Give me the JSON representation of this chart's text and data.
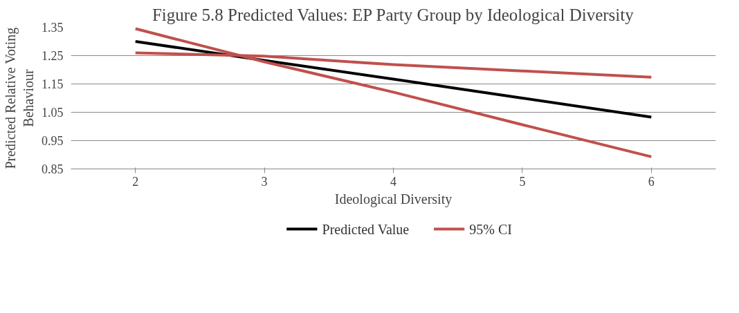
{
  "chart_data": {
    "type": "line",
    "title": "Figure 5.8 Predicted Values: EP Party Group by Ideological Diversity",
    "xlabel": "Ideological Diversity",
    "ylabel": "Predicted Relative Voting Behaviour",
    "categories": [
      "2",
      "3",
      "4",
      "5",
      "6"
    ],
    "series": [
      {
        "name": "Predicted Value",
        "color": "#000000",
        "values": [
          1.3,
          1.233,
          1.167,
          1.1,
          1.033
        ]
      },
      {
        "name": "95% CI",
        "color": "#c0504d",
        "values": [
          1.345,
          1.228,
          1.121,
          1.006,
          0.893
        ]
      },
      {
        "color": "#c0504d",
        "values": [
          1.26,
          1.248,
          1.218,
          1.196,
          1.174
        ]
      }
    ],
    "ylim": [
      0.85,
      1.35
    ],
    "yticks": [
      0.85,
      0.95,
      1.05,
      1.15,
      1.25,
      1.35
    ],
    "grid": "y",
    "legend": "bottom",
    "marker": "none",
    "line_style": "solid"
  }
}
